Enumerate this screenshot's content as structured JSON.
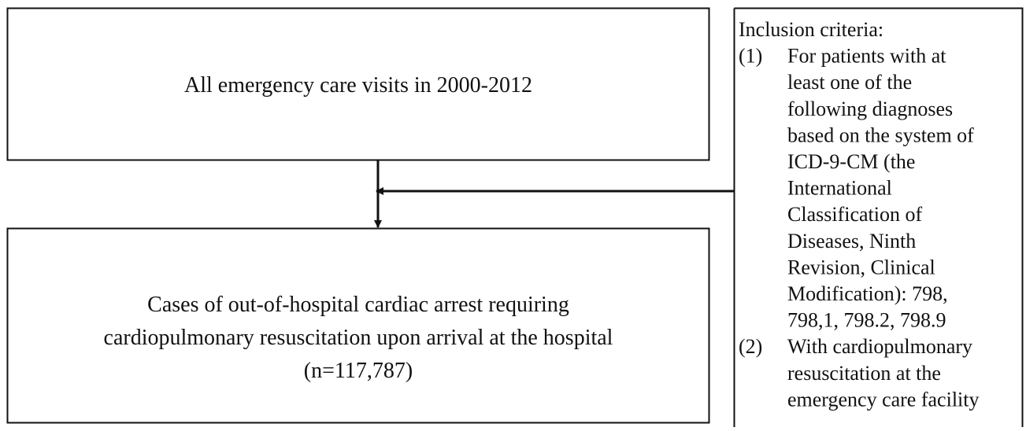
{
  "nodes": [
    {
      "lines": [
        "All emergency care visits in 2000-2012"
      ]
    },
    {
      "lines": [
        "Cases of out-of-hospital cardiac arrest requiring",
        "cardiopulmonary resuscitation upon arrival at the hospital",
        "(n=117,787)"
      ]
    }
  ],
  "criteria": {
    "title": "Inclusion criteria:",
    "items": [
      {
        "marker": "(1)",
        "lines": [
          "For patients with at",
          "least one of the",
          "following diagnoses",
          "based on the system of",
          "ICD-9-CM (the",
          "International",
          "Classification of",
          "Diseases, Ninth",
          "Revision, Clinical",
          "Modification): 798,",
          "798,1, 798.2, 798.9"
        ]
      },
      {
        "marker": "(2)",
        "lines": [
          "With cardiopulmonary",
          "resuscitation at the",
          "emergency care facility"
        ]
      }
    ]
  }
}
